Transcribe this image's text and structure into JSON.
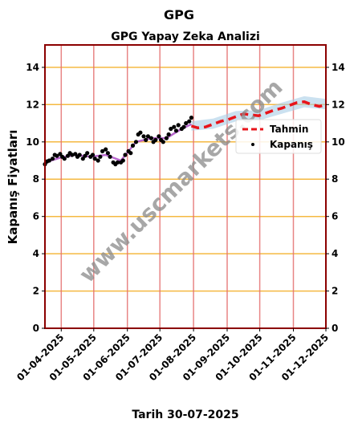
{
  "chart_data": {
    "type": "line",
    "title": "GPG",
    "subtitle": "GPG Yapay Zeka Analizi",
    "xlabel": "Tarih 30-07-2025",
    "ylabel": "Kapanış Fiyatları",
    "ylim": [
      0,
      15.2
    ],
    "xlim": [
      "2025-03-17",
      "2025-12-01"
    ],
    "yticks": [
      0,
      2,
      4,
      6,
      8,
      10,
      12,
      14
    ],
    "yticks_labels": [
      "0",
      "2",
      "4",
      "6",
      "8",
      "10",
      "12",
      "14"
    ],
    "xticks": [
      "2025-04-01",
      "2025-05-01",
      "2025-06-01",
      "2025-07-01",
      "2025-08-01",
      "2025-09-01",
      "2025-10-01",
      "2025-11-01",
      "2025-12-01"
    ],
    "xticks_labels": [
      "01-04-2025",
      "01-05-2025",
      "01-06-2025",
      "01-07-2025",
      "01-08-2025",
      "01-09-2025",
      "01-10-2025",
      "01-11-2025",
      "01-12-2025"
    ],
    "grid": "horizontal",
    "legend_position": "right",
    "watermark": "www.uscmarkets.com",
    "colors": {
      "prediction": "#e8141b",
      "actual": "#000000",
      "band": "#a8cde6",
      "trend": "#b057c9",
      "hgrid": "#f5b942",
      "vline": "#e47070",
      "frame": "#8b0000",
      "watermark": "#8a8a8a"
    },
    "series": [
      {
        "name": "Kapanış",
        "style": "dots",
        "x": [
          "2025-03-17",
          "2025-03-19",
          "2025-03-21",
          "2025-03-24",
          "2025-03-26",
          "2025-03-28",
          "2025-03-31",
          "2025-04-02",
          "2025-04-04",
          "2025-04-07",
          "2025-04-09",
          "2025-04-11",
          "2025-04-14",
          "2025-04-16",
          "2025-04-18",
          "2025-04-21",
          "2025-04-23",
          "2025-04-25",
          "2025-04-28",
          "2025-04-30",
          "2025-05-02",
          "2025-05-05",
          "2025-05-07",
          "2025-05-09",
          "2025-05-12",
          "2025-05-14",
          "2025-05-16",
          "2025-05-19",
          "2025-05-21",
          "2025-05-23",
          "2025-05-26",
          "2025-05-28",
          "2025-05-30",
          "2025-06-02",
          "2025-06-04",
          "2025-06-06",
          "2025-06-09",
          "2025-06-11",
          "2025-06-13",
          "2025-06-16",
          "2025-06-18",
          "2025-06-20",
          "2025-06-23",
          "2025-06-25",
          "2025-06-27",
          "2025-06-30",
          "2025-07-02",
          "2025-07-04",
          "2025-07-07",
          "2025-07-09",
          "2025-07-11",
          "2025-07-14",
          "2025-07-16",
          "2025-07-18",
          "2025-07-21",
          "2025-07-23",
          "2025-07-25",
          "2025-07-28",
          "2025-07-30"
        ],
        "y": [
          8.8,
          8.95,
          9.0,
          9.1,
          9.3,
          9.25,
          9.35,
          9.2,
          9.1,
          9.25,
          9.4,
          9.3,
          9.35,
          9.2,
          9.3,
          9.1,
          9.25,
          9.4,
          9.2,
          9.3,
          9.1,
          9.0,
          9.2,
          9.5,
          9.6,
          9.4,
          9.2,
          8.9,
          8.8,
          8.9,
          8.9,
          9.0,
          9.3,
          9.5,
          9.4,
          9.8,
          10.0,
          10.4,
          10.5,
          10.3,
          10.1,
          10.3,
          10.2,
          10.0,
          10.1,
          10.3,
          10.1,
          10.0,
          10.2,
          10.4,
          10.7,
          10.8,
          10.6,
          10.9,
          10.7,
          10.8,
          11.0,
          11.1,
          11.3
        ]
      },
      {
        "name": "Tahmin",
        "style": "dashed",
        "x": [
          "2025-07-30",
          "2025-08-05",
          "2025-08-12",
          "2025-08-19",
          "2025-08-26",
          "2025-09-02",
          "2025-09-09",
          "2025-09-16",
          "2025-09-23",
          "2025-09-30",
          "2025-10-07",
          "2025-10-14",
          "2025-10-21",
          "2025-10-28",
          "2025-11-04",
          "2025-11-11",
          "2025-11-18",
          "2025-11-25",
          "2025-12-01"
        ],
        "y": [
          10.85,
          10.75,
          10.8,
          10.95,
          11.1,
          11.2,
          11.35,
          11.5,
          11.45,
          11.4,
          11.55,
          11.7,
          11.8,
          11.95,
          12.1,
          12.15,
          12.0,
          11.9,
          12.0
        ]
      }
    ],
    "band": {
      "x": [
        "2025-07-30",
        "2025-08-19",
        "2025-09-09",
        "2025-09-30",
        "2025-10-21",
        "2025-11-11",
        "2025-12-01"
      ],
      "lower": [
        10.6,
        10.7,
        11.1,
        11.15,
        11.5,
        11.85,
        11.75
      ],
      "upper": [
        11.1,
        11.25,
        11.65,
        11.7,
        12.1,
        12.45,
        12.3
      ]
    },
    "trend": {
      "x": [
        "2025-03-17",
        "2025-03-31",
        "2025-04-14",
        "2025-04-28",
        "2025-05-12",
        "2025-05-26",
        "2025-06-09",
        "2025-06-23",
        "2025-07-07",
        "2025-07-21",
        "2025-07-30"
      ],
      "y": [
        8.9,
        9.15,
        9.3,
        9.2,
        9.3,
        9.0,
        10.0,
        10.2,
        10.2,
        10.7,
        10.95
      ]
    }
  }
}
